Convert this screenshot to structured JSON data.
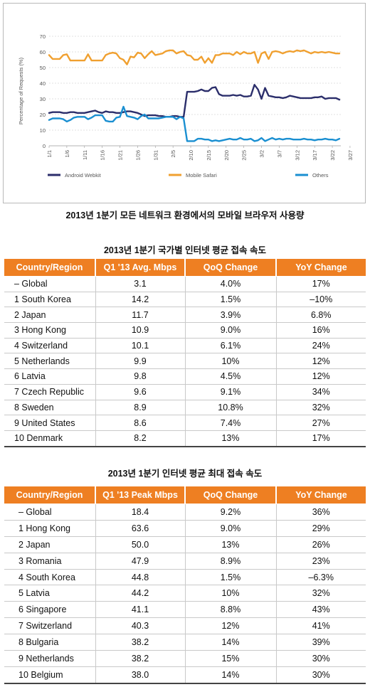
{
  "chart_data": {
    "type": "line",
    "ylabel": "Percentage of Requests (%)",
    "ylim": [
      0,
      70
    ],
    "yticks": [
      "0",
      "10",
      "20",
      "30",
      "40",
      "50",
      "60",
      "70"
    ],
    "x_tick_labels": [
      "1/1",
      "1/6",
      "1/11",
      "1/16",
      "1/21",
      "1/26",
      "1/31",
      "2/5",
      "2/10",
      "2/15",
      "2/20",
      "2/25",
      "3/2",
      "3/7",
      "3/12",
      "3/17",
      "3/22",
      "3/27"
    ],
    "grid": "horizontal",
    "legend_position": "bottom",
    "series": [
      {
        "name": "Android Webkit",
        "color": "#2b2e6b",
        "values": [
          21,
          21.5,
          21.5,
          21.5,
          21,
          21,
          21.5,
          21.5,
          21,
          21,
          21,
          21.5,
          22,
          22.5,
          21.5,
          21,
          22,
          21.5,
          21.5,
          21,
          21,
          21.5,
          22,
          22,
          21.5,
          21,
          20,
          19,
          19.5,
          19.5,
          19.5,
          19,
          19,
          18.5,
          18.5,
          19,
          19,
          18.5,
          18.5,
          34.5,
          34.5,
          34.5,
          35,
          36,
          35,
          35,
          37,
          37.5,
          33,
          32,
          32,
          32,
          32.5,
          32,
          32.5,
          31.5,
          31.5,
          32,
          39,
          36,
          30,
          37,
          32,
          31.5,
          31,
          31,
          30.5,
          31,
          32,
          31.5,
          31,
          30.5,
          30.5,
          30.5,
          30.5,
          31,
          31,
          31.5,
          30,
          30.5,
          30.5,
          30.5,
          29.5
        ]
      },
      {
        "name": "Mobile Safari",
        "color": "#f0a030",
        "values": [
          58,
          55.5,
          55.5,
          55.5,
          58,
          58.5,
          54.5,
          54.5,
          54.5,
          54.5,
          54.5,
          58.5,
          54.5,
          54.5,
          54.5,
          54.5,
          58,
          59,
          59.5,
          59,
          56,
          55,
          52,
          57,
          56.5,
          59.5,
          59,
          56,
          58.5,
          60.5,
          58,
          58.5,
          59,
          60.5,
          61,
          61,
          59,
          60,
          60.5,
          58,
          57.5,
          55,
          55,
          57,
          53,
          56,
          53,
          58,
          58,
          59,
          59,
          59,
          58,
          60,
          58.5,
          60,
          59,
          59,
          60,
          53,
          59,
          60,
          55.5,
          60,
          60.5,
          60,
          59,
          60,
          60.5,
          60,
          61,
          60.5,
          61,
          60,
          59,
          60,
          59.5,
          60,
          59.5,
          60,
          59.5,
          59,
          59
        ]
      },
      {
        "name": "Others",
        "color": "#1a8fd1",
        "values": [
          16.5,
          17.5,
          17.5,
          17.5,
          17,
          15.5,
          16.5,
          18,
          18.5,
          18.5,
          18.5,
          17,
          18,
          19.5,
          19.5,
          19.5,
          16,
          15.5,
          15.5,
          18,
          18.5,
          25,
          19,
          18.5,
          18,
          17,
          19,
          20,
          17.5,
          17.5,
          17.5,
          17.5,
          18,
          18.5,
          18.5,
          18.5,
          17,
          18.5,
          17.5,
          3,
          3,
          3,
          4.5,
          4.5,
          4,
          4,
          3,
          3.5,
          3,
          3.5,
          4,
          4.5,
          4,
          4,
          5,
          4,
          4,
          4.5,
          3,
          3.5,
          5,
          3,
          4,
          5,
          4,
          4.5,
          4,
          4.5,
          4.5,
          4,
          4,
          4,
          4.5,
          4,
          4,
          3.5,
          4,
          4,
          4.5,
          4,
          4,
          3.5,
          4.5
        ]
      }
    ]
  },
  "caption_chart": "2013년 1분기 모든 네트워크 환경에서의 모바일 브라우저 사용량",
  "caption_table1": "2013년 1분기 국가별 인터넷 평균 접속 속도",
  "caption_table2": "2013년 1분기 인터넷 평균 최대 접속 속도",
  "table1": {
    "headers": [
      "Country/Region",
      "Q1 '13 Avg. Mbps",
      "QoQ Change",
      "YoY Change"
    ],
    "rows": [
      [
        "– Global",
        "3.1",
        "4.0%",
        "17%"
      ],
      [
        "1 South Korea",
        "14.2",
        "1.5%",
        "–10%"
      ],
      [
        "2 Japan",
        "11.7",
        "3.9%",
        "6.8%"
      ],
      [
        "3 Hong Kong",
        "10.9",
        "9.0%",
        "16%"
      ],
      [
        "4 Switzerland",
        "10.1",
        "6.1%",
        "24%"
      ],
      [
        "5 Netherlands",
        "9.9",
        "10%",
        "12%"
      ],
      [
        "6 Latvia",
        "9.8",
        "4.5%",
        "12%"
      ],
      [
        "7 Czech Republic",
        "9.6",
        "9.1%",
        "34%"
      ],
      [
        "8 Sweden",
        "8.9",
        "10.8%",
        "32%"
      ],
      [
        "9 United States",
        "8.6",
        "7.4%",
        "27%"
      ],
      [
        "10 Denmark",
        "8.2",
        "13%",
        "17%"
      ]
    ]
  },
  "table2": {
    "headers": [
      "Country/Region",
      "Q1 '13 Peak Mbps",
      "QoQ Change",
      "YoY Change"
    ],
    "rows": [
      [
        "– Global",
        "18.4",
        "9.2%",
        "36%"
      ],
      [
        "1 Hong Kong",
        "63.6",
        "9.0%",
        "29%"
      ],
      [
        "2 Japan",
        "50.0",
        "13%",
        "26%"
      ],
      [
        "3 Romania",
        "47.9",
        "8.9%",
        "23%"
      ],
      [
        "4 South Korea",
        "44.8",
        "1.5%",
        "–6.3%"
      ],
      [
        "5 Latvia",
        "44.2",
        "10%",
        "32%"
      ],
      [
        "6 Singapore",
        "41.1",
        "8.8%",
        "43%"
      ],
      [
        "7 Switzerland",
        "40.3",
        "12%",
        "41%"
      ],
      [
        "8 Bulgaria",
        "38.2",
        "14%",
        "39%"
      ],
      [
        "9 Netherlands",
        "38.2",
        "15%",
        "30%"
      ],
      [
        "10 Belgium",
        "38.0",
        "14%",
        "30%"
      ]
    ]
  }
}
